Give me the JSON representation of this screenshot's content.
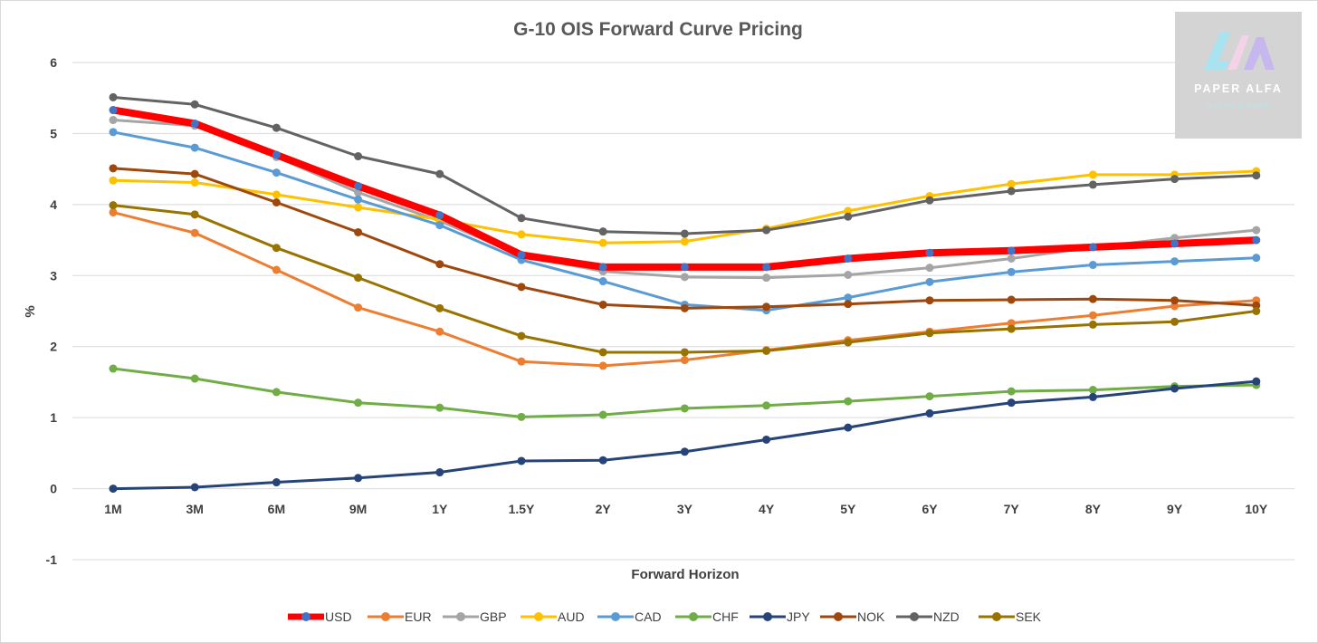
{
  "chart_data": {
    "type": "line",
    "title": "G-10 OIS Forward Curve Pricing",
    "xlabel": "Forward Horizon",
    "ylabel": "%",
    "ylim": [
      -1,
      6
    ],
    "yticks": [
      -1,
      0,
      1,
      2,
      3,
      4,
      5,
      6
    ],
    "grid": true,
    "legend_position": "bottom",
    "categories": [
      "1M",
      "3M",
      "6M",
      "9M",
      "1Y",
      "1.5Y",
      "2Y",
      "3Y",
      "4Y",
      "5Y",
      "6Y",
      "7Y",
      "8Y",
      "9Y",
      "10Y"
    ],
    "series": [
      {
        "name": "USD",
        "color": "#ff0000",
        "marker": "#4472c4",
        "width": 8,
        "values": [
          5.33,
          5.14,
          4.7,
          4.26,
          3.85,
          3.29,
          3.12,
          3.12,
          3.12,
          3.24,
          3.32,
          3.35,
          3.4,
          3.45,
          3.5
        ]
      },
      {
        "name": "EUR",
        "color": "#ed7d31",
        "width": 3,
        "values": [
          3.89,
          3.6,
          3.08,
          2.55,
          2.21,
          1.79,
          1.73,
          1.81,
          1.95,
          2.09,
          2.21,
          2.33,
          2.44,
          2.57,
          2.65
        ]
      },
      {
        "name": "GBP",
        "color": "#a5a5a5",
        "width": 3,
        "values": [
          5.19,
          5.11,
          4.67,
          4.17,
          3.77,
          3.28,
          3.06,
          2.98,
          2.97,
          3.01,
          3.11,
          3.24,
          3.4,
          3.53,
          3.64
        ]
      },
      {
        "name": "AUD",
        "color": "#ffc000",
        "width": 3,
        "values": [
          4.34,
          4.31,
          4.14,
          3.96,
          3.79,
          3.58,
          3.46,
          3.48,
          3.66,
          3.91,
          4.12,
          4.29,
          4.42,
          4.42,
          4.47
        ]
      },
      {
        "name": "CAD",
        "color": "#5b9bd5",
        "width": 3,
        "values": [
          5.02,
          4.8,
          4.45,
          4.07,
          3.71,
          3.22,
          2.92,
          2.59,
          2.51,
          2.69,
          2.91,
          3.05,
          3.15,
          3.2,
          3.25
        ]
      },
      {
        "name": "CHF",
        "color": "#70ad47",
        "width": 3,
        "values": [
          1.69,
          1.55,
          1.36,
          1.21,
          1.14,
          1.01,
          1.04,
          1.13,
          1.17,
          1.23,
          1.3,
          1.37,
          1.39,
          1.44,
          1.46
        ]
      },
      {
        "name": "JPY",
        "color": "#264478",
        "width": 3,
        "values": [
          0.0,
          0.02,
          0.09,
          0.15,
          0.23,
          0.39,
          0.4,
          0.52,
          0.69,
          0.86,
          1.06,
          1.21,
          1.29,
          1.41,
          1.51
        ]
      },
      {
        "name": "NOK",
        "color": "#9e480e",
        "width": 3,
        "values": [
          4.51,
          4.43,
          4.03,
          3.61,
          3.16,
          2.84,
          2.59,
          2.54,
          2.56,
          2.6,
          2.65,
          2.66,
          2.67,
          2.65,
          2.58
        ]
      },
      {
        "name": "NZD",
        "color": "#636363",
        "width": 3,
        "values": [
          5.51,
          5.41,
          5.08,
          4.68,
          4.43,
          3.81,
          3.62,
          3.59,
          3.64,
          3.83,
          4.06,
          4.19,
          4.28,
          4.36,
          4.41
        ]
      },
      {
        "name": "SEK",
        "color": "#997300",
        "width": 3,
        "values": [
          3.99,
          3.86,
          3.39,
          2.97,
          2.54,
          2.15,
          1.92,
          1.92,
          1.94,
          2.06,
          2.19,
          2.25,
          2.31,
          2.35,
          2.5
        ]
      }
    ]
  },
  "logo": {
    "name": "PAPER ALFA",
    "tagline": "MACRO & MORE"
  }
}
